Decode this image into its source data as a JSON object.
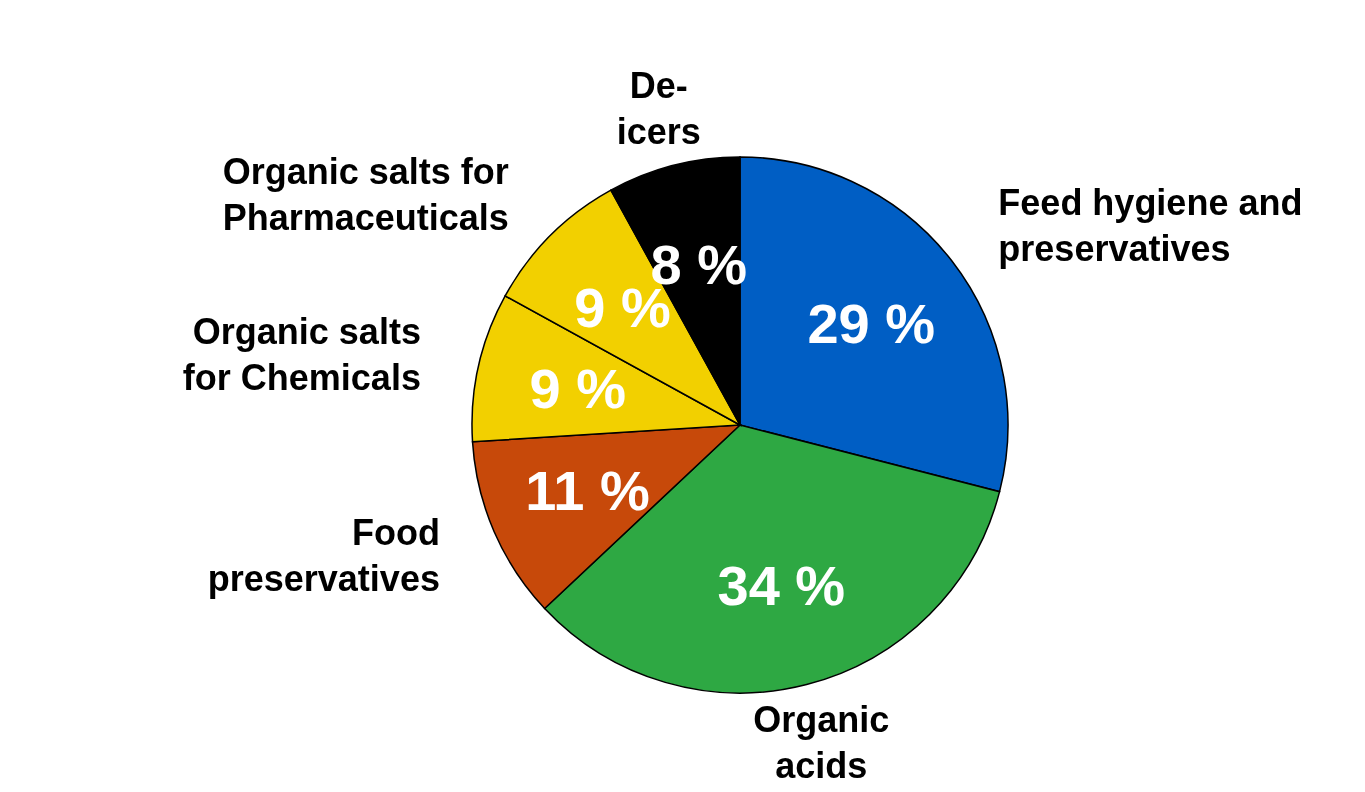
{
  "chart_data": {
    "type": "pie",
    "categories": [
      "Feed hygiene and\npreservatives",
      "Organic\nacids",
      "Food\npreservatives",
      "Organic salts\nfor Chemicals",
      "Organic salts for\nPharmaceuticals",
      "De-\nicers"
    ],
    "values": [
      29,
      34,
      11,
      9,
      9,
      8
    ],
    "colors": [
      "#005ec4",
      "#2ea843",
      "#c7490a",
      "#f2d000",
      "#f2d000",
      "#000000"
    ],
    "value_labels": [
      "29 %",
      "34 %",
      "11 %",
      "9 %",
      "9 %",
      "8 %"
    ],
    "legend": false
  }
}
